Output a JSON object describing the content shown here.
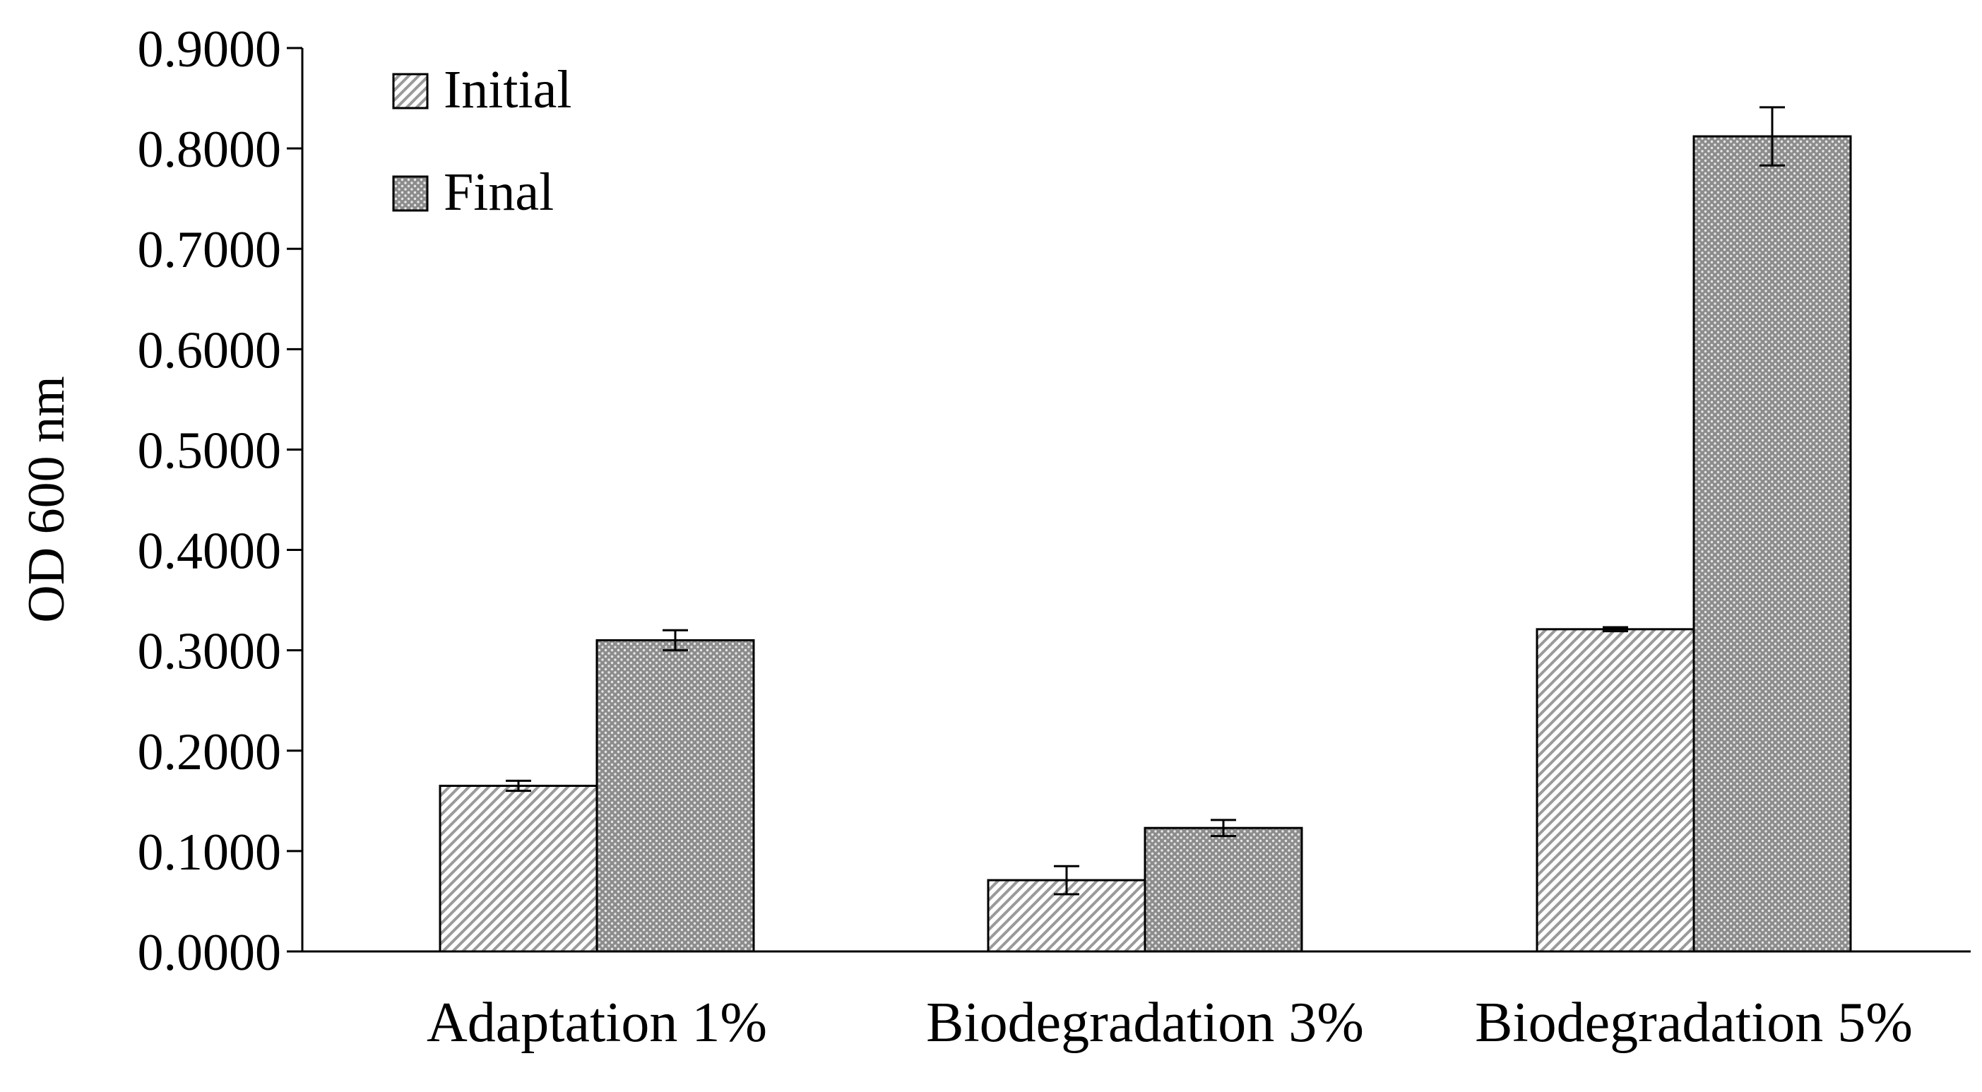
{
  "chart_data": {
    "type": "bar",
    "title": "",
    "xlabel": "",
    "ylabel": "OD 600 nm",
    "ylim": [
      0,
      0.9
    ],
    "yticks": [
      0,
      0.1,
      0.2,
      0.3,
      0.4,
      0.5,
      0.6,
      0.7,
      0.8,
      0.9
    ],
    "ytick_labels": [
      "0.0000",
      "0.1000",
      "0.2000",
      "0.3000",
      "0.4000",
      "0.5000",
      "0.6000",
      "0.7000",
      "0.8000",
      "0.9000"
    ],
    "categories": [
      "Adaptation 1%",
      "Biodegradation 3%",
      "Biodegradation 5%"
    ],
    "legend_position": "top-left",
    "grid": false,
    "series": [
      {
        "name": "Initial",
        "pattern": "diagonal-hatch",
        "values": [
          0.165,
          0.071,
          0.321
        ],
        "errors": [
          0.005,
          0.014,
          0.002
        ]
      },
      {
        "name": "Final",
        "pattern": "dotted",
        "values": [
          0.31,
          0.123,
          0.812
        ],
        "errors": [
          0.01,
          0.008,
          0.029
        ]
      }
    ]
  }
}
